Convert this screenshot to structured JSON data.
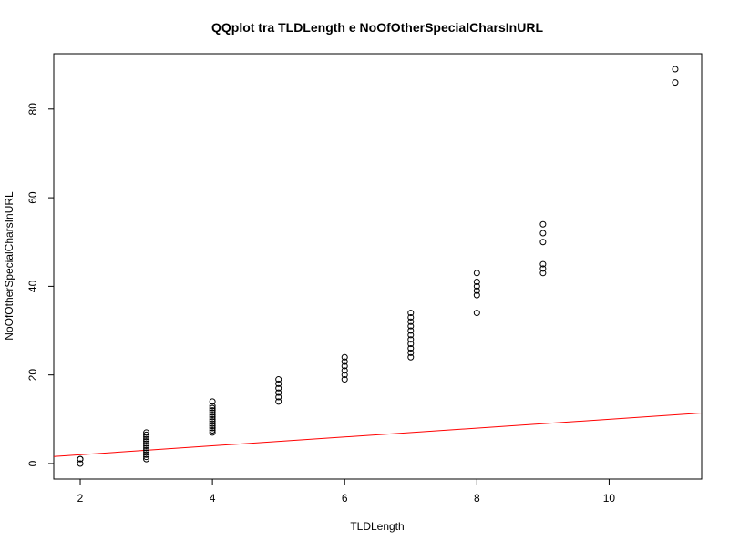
{
  "chart_data": {
    "type": "scatter",
    "title": "QQplot tra TLDLength e NoOfOtherSpecialCharsInURL",
    "xlabel": "TLDLength",
    "ylabel": "NoOfOtherSpecialCharsInURL",
    "xlim": [
      1.6,
      11.4
    ],
    "ylim": [
      -3.5,
      92.5
    ],
    "xticks": [
      2,
      4,
      6,
      8,
      10
    ],
    "yticks": [
      0,
      20,
      40,
      60,
      80
    ],
    "grid": false,
    "legend": "none",
    "series": [
      {
        "marker": "open-circle",
        "color": "#000000",
        "points": [
          [
            2,
            0
          ],
          [
            2,
            1
          ],
          [
            2,
            1
          ],
          [
            3,
            1
          ],
          [
            3,
            1.5
          ],
          [
            3,
            2
          ],
          [
            3,
            2.5
          ],
          [
            3,
            3
          ],
          [
            3,
            3.5
          ],
          [
            3,
            4
          ],
          [
            3,
            4.5
          ],
          [
            3,
            5
          ],
          [
            3,
            5.5
          ],
          [
            3,
            6
          ],
          [
            3,
            6.5
          ],
          [
            3,
            7
          ],
          [
            4,
            7
          ],
          [
            4,
            7.5
          ],
          [
            4,
            8
          ],
          [
            4,
            8.5
          ],
          [
            4,
            9
          ],
          [
            4,
            9.5
          ],
          [
            4,
            10
          ],
          [
            4,
            10.5
          ],
          [
            4,
            11
          ],
          [
            4,
            11.5
          ],
          [
            4,
            12
          ],
          [
            4,
            12.5
          ],
          [
            4,
            13
          ],
          [
            4,
            14
          ],
          [
            5,
            14
          ],
          [
            5,
            15
          ],
          [
            5,
            16
          ],
          [
            5,
            17
          ],
          [
            5,
            18
          ],
          [
            5,
            19
          ],
          [
            6,
            19
          ],
          [
            6,
            20
          ],
          [
            6,
            21
          ],
          [
            6,
            22
          ],
          [
            6,
            23
          ],
          [
            6,
            24
          ],
          [
            7,
            24
          ],
          [
            7,
            25
          ],
          [
            7,
            26
          ],
          [
            7,
            27
          ],
          [
            7,
            28
          ],
          [
            7,
            29
          ],
          [
            7,
            30
          ],
          [
            7,
            31
          ],
          [
            7,
            32
          ],
          [
            7,
            33
          ],
          [
            7,
            34
          ],
          [
            8,
            34
          ],
          [
            8,
            38
          ],
          [
            8,
            39
          ],
          [
            8,
            40
          ],
          [
            8,
            41
          ],
          [
            8,
            43
          ],
          [
            9,
            43
          ],
          [
            9,
            44
          ],
          [
            9,
            45
          ],
          [
            9,
            50
          ],
          [
            9,
            52
          ],
          [
            9,
            54
          ],
          [
            11,
            86
          ],
          [
            11,
            89
          ]
        ]
      }
    ],
    "reference_line": {
      "slope": 1,
      "intercept": 0,
      "color": "#ff0000"
    }
  }
}
